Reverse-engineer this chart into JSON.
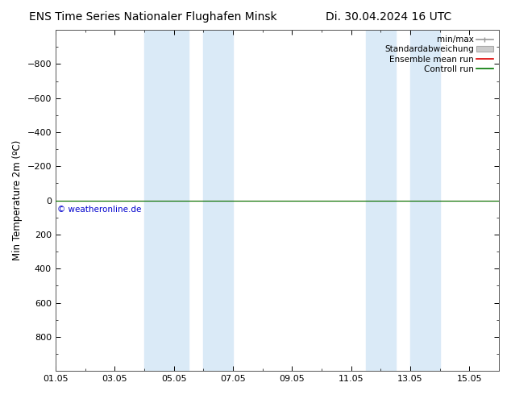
{
  "title_left": "ENS Time Series Nationaler Flughafen Minsk",
  "title_right": "Di. 30.04.2024 16 UTC",
  "ylabel": "Min Temperature 2m (ºC)",
  "ylim_min": -1000,
  "ylim_max": 1000,
  "yticks": [
    -800,
    -600,
    -400,
    -200,
    0,
    200,
    400,
    600,
    800
  ],
  "xlim_min": 0,
  "xlim_max": 15,
  "xtick_labels": [
    "01.05",
    "03.05",
    "05.05",
    "07.05",
    "09.05",
    "11.05",
    "13.05",
    "15.05"
  ],
  "xtick_positions": [
    0,
    2,
    4,
    6,
    8,
    10,
    12,
    14
  ],
  "blue_bands": [
    {
      "start": 3.0,
      "end": 4.5
    },
    {
      "start": 5.0,
      "end": 6.0
    },
    {
      "start": 10.5,
      "end": 11.5
    },
    {
      "start": 12.0,
      "end": 13.0
    }
  ],
  "green_line_y": 0,
  "red_line_y": 0,
  "control_run_color": "#007700",
  "ensemble_mean_color": "#dd0000",
  "min_max_color": "#999999",
  "std_color": "#cccccc",
  "blue_band_color": "#daeaf7",
  "background_color": "#ffffff",
  "copyright_text": "© weatheronline.de",
  "copyright_color": "#0000cc",
  "legend_labels": [
    "min/max",
    "Standardabweichung",
    "Ensemble mean run",
    "Controll run"
  ],
  "title_fontsize": 10,
  "tick_fontsize": 8,
  "ylabel_fontsize": 8.5,
  "legend_fontsize": 7.5
}
